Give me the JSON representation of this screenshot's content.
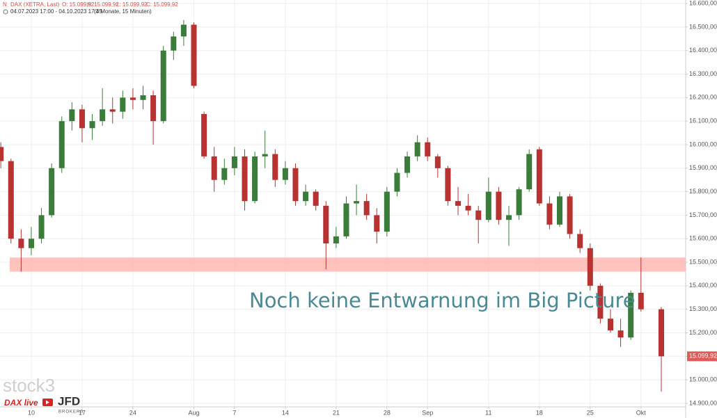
{
  "chart_data": {
    "type": "candlestick",
    "header": {
      "symbol": "DAX (XETRA, Last)",
      "open": "O: 15.099,92",
      "high": "H: 15.099,92",
      "low": "L: 15.099,92",
      "close": "C: 15.099,92",
      "range": "04.07.2023 17:00 - 04.10.2023 17:45",
      "period": "(3 Monate, 15 Minuten)"
    },
    "annotation": "Noch keine Entwarnung im Big Picture",
    "band": {
      "from": 15460,
      "to": 15520,
      "color": "#ffb3ad"
    },
    "last": {
      "value": 15099.92,
      "label": "15.099,92"
    },
    "logos": {
      "stock": "stock3",
      "dax": "DAX live",
      "broker": "JFD",
      "broker_sub": "BROKERS"
    },
    "up_color": "#3a7d3a",
    "down_color": "#b83232",
    "grid": true,
    "x": [
      1,
      2,
      3,
      4,
      5,
      6,
      7,
      8,
      9,
      10,
      11,
      12,
      13,
      14,
      15,
      16,
      17,
      18,
      19,
      20,
      21,
      22,
      23,
      24,
      25,
      26,
      27,
      28,
      29,
      30,
      31,
      32,
      33,
      34,
      35,
      36,
      37,
      38,
      39,
      40,
      41,
      42,
      43,
      44,
      45,
      46,
      47,
      48,
      49,
      50,
      51,
      52,
      53,
      54,
      55,
      56,
      57,
      58,
      59,
      60,
      61,
      62,
      63,
      64,
      66
    ],
    "open": [
      15990,
      15930,
      15600,
      15560,
      15600,
      15700,
      15900,
      16100,
      16150,
      16070,
      16100,
      16150,
      16140,
      16200,
      16190,
      16210,
      16100,
      16400,
      16460,
      16510,
      16130,
      15950,
      15850,
      15900,
      15950,
      15760,
      15950,
      15960,
      15850,
      15900,
      15760,
      15800,
      15740,
      15580,
      15610,
      15750,
      15760,
      15700,
      15630,
      15800,
      15880,
      15950,
      16010,
      15950,
      15900,
      15760,
      15740,
      15720,
      15680,
      15800,
      15680,
      15700,
      15810,
      15980,
      15750,
      15660,
      15780,
      15620,
      15560,
      15400,
      15260,
      15210,
      15180,
      15370,
      15300
    ],
    "high": [
      16010,
      15940,
      15640,
      15650,
      15730,
      15920,
      16120,
      16180,
      16170,
      16130,
      16240,
      16200,
      16230,
      16240,
      16250,
      16230,
      16420,
      16480,
      16530,
      16520,
      16140,
      15990,
      15940,
      15990,
      15980,
      15970,
      16060,
      15980,
      15930,
      15920,
      15830,
      15810,
      15760,
      15650,
      15780,
      15830,
      15790,
      15730,
      15820,
      15900,
      15970,
      16040,
      16030,
      15960,
      15910,
      15820,
      15790,
      15740,
      15860,
      15820,
      15740,
      15820,
      15980,
      15990,
      15780,
      15800,
      15790,
      15640,
      15580,
      15410,
      15300,
      15260,
      15380,
      15520,
      15310
    ],
    "low": [
      15900,
      15580,
      15460,
      15530,
      15580,
      15690,
      15880,
      16060,
      16010,
      16020,
      16080,
      16090,
      16110,
      16150,
      16150,
      16000,
      16090,
      16360,
      16420,
      16240,
      15940,
      15800,
      15830,
      15870,
      15720,
      15750,
      15900,
      15820,
      15830,
      15740,
      15740,
      15720,
      15470,
      15560,
      15600,
      15700,
      15680,
      15580,
      15610,
      15780,
      15860,
      15930,
      15930,
      15860,
      15740,
      15700,
      15700,
      15580,
      15670,
      15660,
      15570,
      15680,
      15800,
      15740,
      15640,
      15650,
      15600,
      15540,
      15380,
      15240,
      15200,
      15140,
      15170,
      15290,
      14950
    ],
    "close": [
      15930,
      15600,
      15560,
      15600,
      15700,
      15900,
      16100,
      16150,
      16070,
      16100,
      16150,
      16140,
      16200,
      16190,
      16210,
      16100,
      16400,
      16460,
      16510,
      16250,
      15950,
      15850,
      15900,
      15950,
      15760,
      15950,
      15960,
      15850,
      15900,
      15760,
      15800,
      15740,
      15580,
      15610,
      15750,
      15760,
      15700,
      15630,
      15800,
      15880,
      15950,
      16010,
      15950,
      15900,
      15760,
      15740,
      15720,
      15680,
      15800,
      15680,
      15700,
      15810,
      15960,
      15750,
      15660,
      15780,
      15620,
      15560,
      15400,
      15260,
      15210,
      15180,
      15370,
      15300,
      15099.92
    ],
    "xlim": [
      0.92,
      68.4
    ],
    "xticks": [
      {
        "value": 4,
        "label": "10"
      },
      {
        "value": 9,
        "label": "17"
      },
      {
        "value": 14,
        "label": "24"
      },
      {
        "value": 20,
        "label": "Aug"
      },
      {
        "value": 24,
        "label": "7"
      },
      {
        "value": 29,
        "label": "14"
      },
      {
        "value": 34,
        "label": "21"
      },
      {
        "value": 39,
        "label": "28"
      },
      {
        "value": 43,
        "label": "Sep"
      },
      {
        "value": 49,
        "label": "11"
      },
      {
        "value": 54,
        "label": "18"
      },
      {
        "value": 59,
        "label": "25"
      },
      {
        "value": 64,
        "label": "Okt"
      }
    ],
    "ylim": [
      14885,
      16615
    ],
    "yticks": [
      {
        "value": 14900,
        "label": "14.900,00"
      },
      {
        "value": 15000,
        "label": "15.000,00"
      },
      {
        "value": 15100,
        "label": "15.100,00"
      },
      {
        "value": 15200,
        "label": "15.200,00"
      },
      {
        "value": 15300,
        "label": "15.300,00"
      },
      {
        "value": 15400,
        "label": "15.400,00"
      },
      {
        "value": 15500,
        "label": "15.500,00"
      },
      {
        "value": 15600,
        "label": "15.600,00"
      },
      {
        "value": 15700,
        "label": "15.700,00"
      },
      {
        "value": 15800,
        "label": "15.800,00"
      },
      {
        "value": 15900,
        "label": "15.900,00"
      },
      {
        "value": 16000,
        "label": "16.000,00"
      },
      {
        "value": 16100,
        "label": "16.100,00"
      },
      {
        "value": 16200,
        "label": "16.200,00"
      },
      {
        "value": 16300,
        "label": "16.300,00"
      },
      {
        "value": 16400,
        "label": "16.400,00"
      },
      {
        "value": 16500,
        "label": "16.500,00"
      },
      {
        "value": 16600,
        "label": "16.600,00"
      }
    ]
  }
}
